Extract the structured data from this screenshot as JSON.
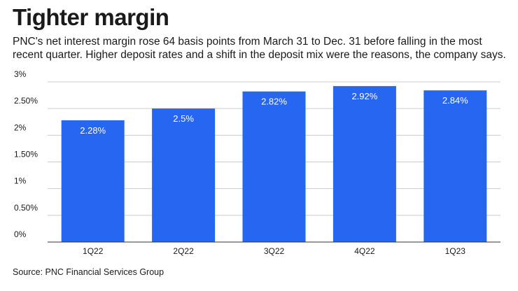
{
  "title": "Tighter margin",
  "subtitle": "PNC's net interest margin rose 64 basis points from March 31 to Dec. 31 before falling in the most recent quarter. Higher deposit rates and a shift in the deposit mix were the reasons, the company says.",
  "source": "Source: PNC Financial Services Group",
  "colors": {
    "bar": "#2666f0",
    "grid": "#cccccc",
    "axis": "#333333"
  },
  "chart_data": {
    "type": "bar",
    "categories": [
      "1Q22",
      "2Q22",
      "3Q22",
      "4Q22",
      "1Q23"
    ],
    "values": [
      2.28,
      2.5,
      2.82,
      2.92,
      2.84
    ],
    "data_labels": [
      "2.28%",
      "2.5%",
      "2.82%",
      "2.92%",
      "2.84%"
    ],
    "ylim": [
      0,
      3
    ],
    "yticks": [
      0,
      0.5,
      1,
      1.5,
      2,
      2.5,
      3
    ],
    "ytick_labels": [
      "0%",
      "0.50%",
      "1%",
      "1.50%",
      "2%",
      "2.50%",
      "3%"
    ],
    "grid": true
  }
}
